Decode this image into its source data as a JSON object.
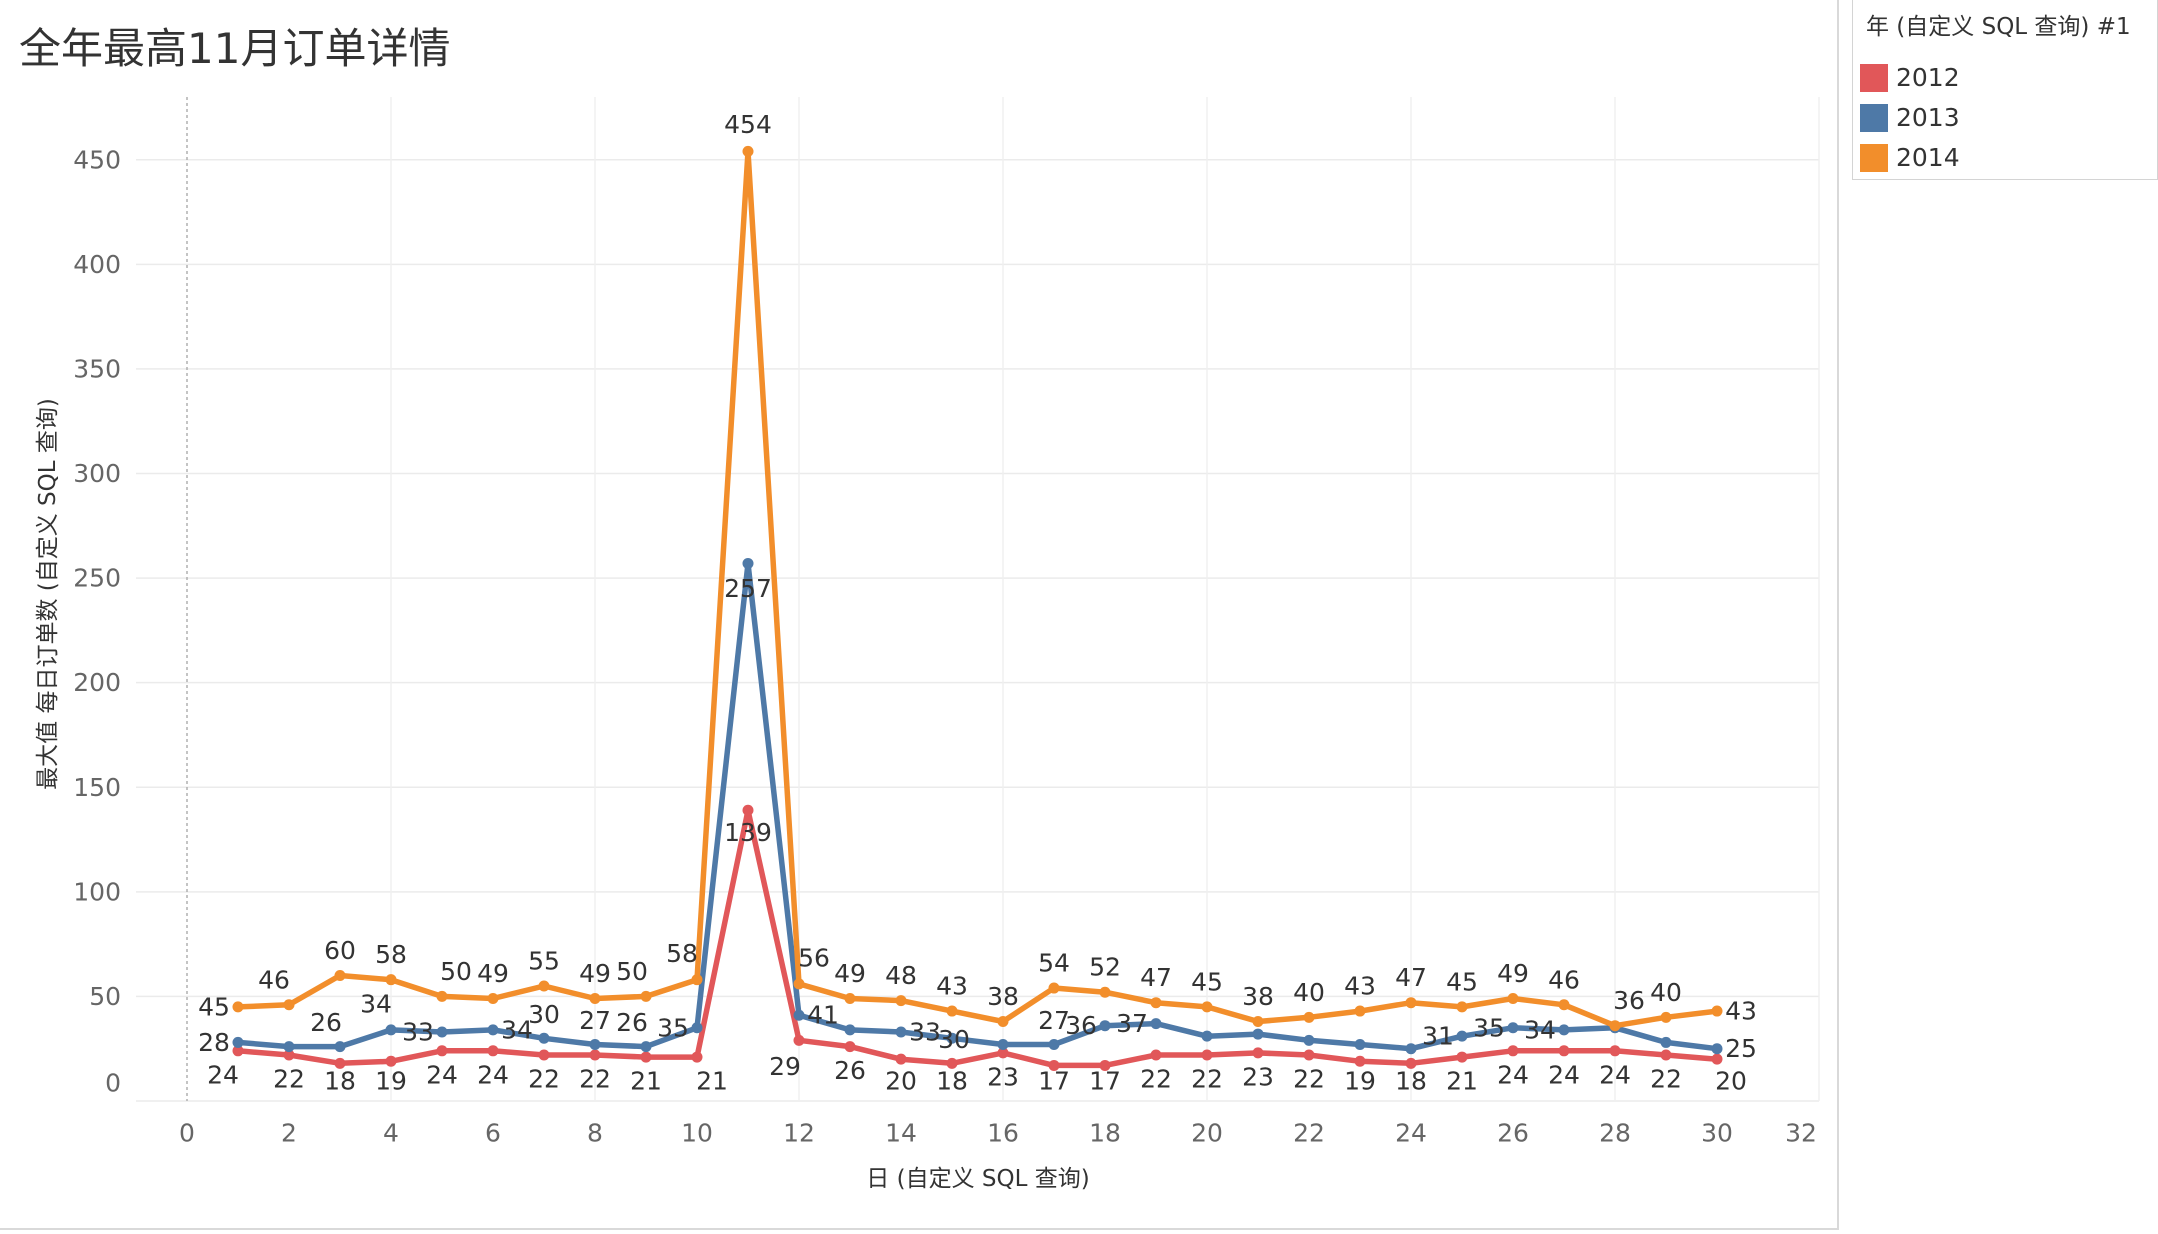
{
  "chart_data": {
    "type": "line",
    "title": "全年最高11月订单详情",
    "xlabel": "日 (自定义 SQL 查询)",
    "ylabel": "最大值 每日订单数 (自定义 SQL 查询)",
    "xlim": [
      -1,
      32
    ],
    "ylim": [
      0,
      480
    ],
    "xticks": [
      0,
      2,
      4,
      6,
      8,
      10,
      12,
      14,
      16,
      18,
      20,
      22,
      24,
      26,
      28,
      30,
      32
    ],
    "yticks": [
      0,
      50,
      100,
      150,
      200,
      250,
      300,
      350,
      400,
      450
    ],
    "grid": true,
    "legend": {
      "title": "年 (自定义 SQL 查询) #1",
      "position": "right"
    },
    "x": [
      1,
      2,
      3,
      4,
      5,
      6,
      7,
      8,
      9,
      10,
      11,
      12,
      13,
      14,
      15,
      16,
      17,
      18,
      19,
      20,
      21,
      22,
      23,
      24,
      25,
      26,
      27,
      28,
      29,
      30
    ],
    "series": [
      {
        "name": "2012",
        "color": "#E15759",
        "values": [
          24,
          22,
          18,
          19,
          24,
          24,
          22,
          22,
          21,
          21,
          139,
          29,
          26,
          20,
          18,
          23,
          17,
          17,
          22,
          22,
          23,
          22,
          19,
          18,
          21,
          24,
          24,
          24,
          22,
          20
        ],
        "labels": [
          24,
          22,
          18,
          19,
          24,
          24,
          22,
          22,
          21,
          21,
          139,
          29,
          26,
          20,
          18,
          23,
          17,
          17,
          22,
          22,
          23,
          22,
          19,
          18,
          21,
          24,
          24,
          24,
          22,
          20
        ]
      },
      {
        "name": "2013",
        "color": "#4E79A7",
        "values": [
          28,
          26,
          26,
          34,
          33,
          34,
          30,
          27,
          26,
          35,
          257,
          41,
          34,
          33,
          30,
          27,
          27,
          36,
          37,
          31,
          32,
          29,
          27,
          25,
          31,
          35,
          34,
          35,
          28,
          25
        ],
        "labels": [
          28,
          null,
          26,
          34,
          33,
          34,
          30,
          27,
          26,
          35,
          257,
          41,
          null,
          33,
          30,
          null,
          27,
          36,
          37,
          null,
          null,
          null,
          null,
          null,
          31,
          35,
          34,
          null,
          null,
          25
        ]
      },
      {
        "name": "2014",
        "color": "#F28E2B",
        "values": [
          45,
          46,
          60,
          58,
          50,
          49,
          55,
          49,
          50,
          58,
          454,
          56,
          49,
          48,
          43,
          38,
          54,
          52,
          47,
          45,
          38,
          40,
          43,
          47,
          45,
          49,
          46,
          36,
          40,
          43
        ],
        "labels": [
          45,
          46,
          60,
          58,
          50,
          49,
          55,
          49,
          50,
          58,
          454,
          56,
          49,
          48,
          43,
          38,
          54,
          52,
          47,
          45,
          38,
          40,
          43,
          47,
          45,
          49,
          46,
          36,
          40,
          43
        ]
      }
    ]
  }
}
